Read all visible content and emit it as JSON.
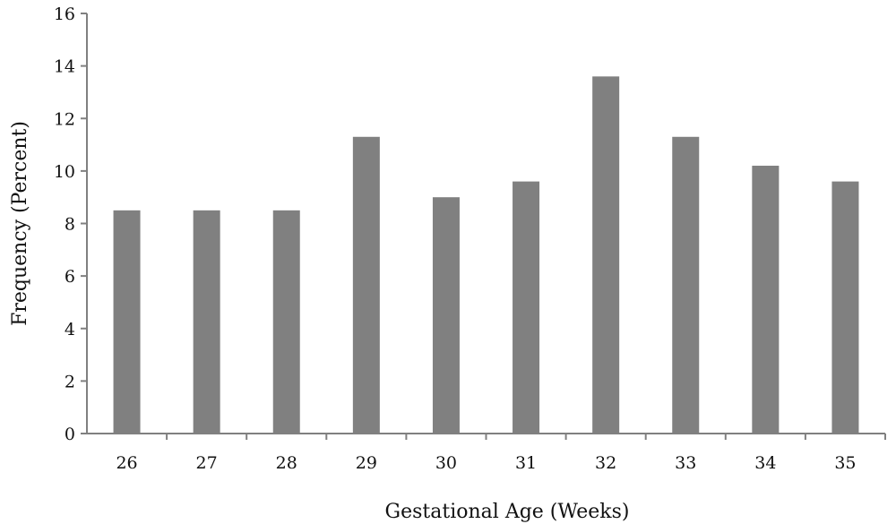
{
  "chart_data": {
    "type": "bar",
    "title": "",
    "xlabel": "Gestational Age (Weeks)",
    "ylabel": "Frequency (Percent)",
    "categories": [
      "26",
      "27",
      "28",
      "29",
      "30",
      "31",
      "32",
      "33",
      "34",
      "35"
    ],
    "values": [
      8.5,
      8.5,
      8.5,
      11.3,
      9.0,
      9.6,
      13.6,
      11.3,
      10.2,
      9.6
    ],
    "ylim": [
      0,
      16
    ],
    "yticks": [
      "0",
      "2",
      "4",
      "6",
      "8",
      "10",
      "12",
      "14",
      "16"
    ],
    "grid": false,
    "legend": "none",
    "bar_color": "#808080"
  }
}
